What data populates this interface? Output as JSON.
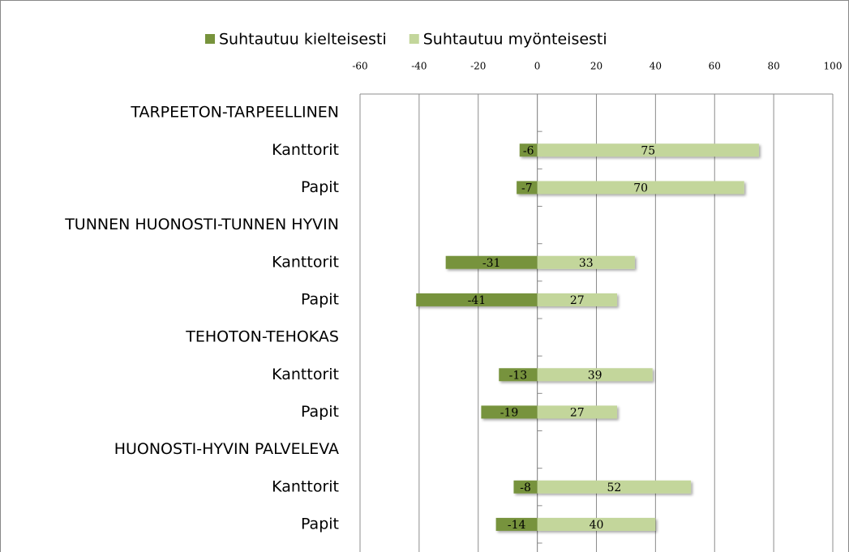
{
  "chart_data": {
    "type": "bar",
    "orientation": "horizontal",
    "stacked": true,
    "categories": [
      "TARPEETON-TARPEELLINEN",
      "Kanttorit",
      "Papit",
      "TUNNEN HUONOSTI-TUNNEN HYVIN",
      "Kanttorit",
      "Papit",
      "TEHOTON-TEHOKAS",
      "Kanttorit",
      "Papit",
      "HUONOSTI-HYVIN PALVELEVA",
      "Kanttorit",
      "Papit"
    ],
    "series": [
      {
        "name": "Suhtautuu kielteisesti",
        "color": "#77933c",
        "values": [
          null,
          -6,
          -7,
          null,
          -31,
          -41,
          null,
          -13,
          -19,
          null,
          -8,
          -14
        ]
      },
      {
        "name": "Suhtautuu myönteisesti",
        "color": "#c3d69b",
        "values": [
          null,
          75,
          70,
          null,
          33,
          27,
          null,
          39,
          27,
          null,
          52,
          40
        ]
      }
    ],
    "xlim": [
      -60,
      100
    ],
    "xticks": [
      -60,
      -40,
      -20,
      0,
      20,
      40,
      60,
      80,
      100
    ],
    "grid": true,
    "legend": "top"
  }
}
